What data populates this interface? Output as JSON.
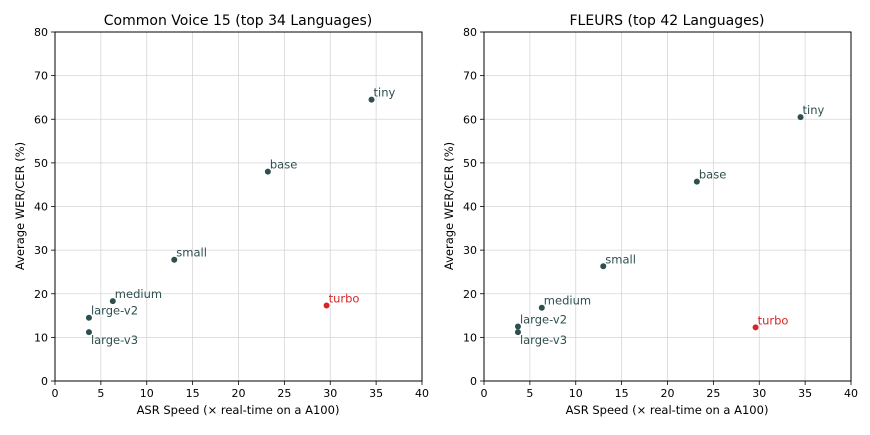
{
  "colors": {
    "default_point": "#2f4f4f",
    "highlight_point": "#d62728"
  },
  "chart_data": [
    {
      "type": "scatter",
      "title": "Common Voice 15 (top 34 Languages)",
      "xlabel": "ASR Speed (× real-time on a A100)",
      "ylabel": "Average WER/CER (%)",
      "xlim": [
        0,
        40
      ],
      "ylim": [
        0,
        80
      ],
      "xticks": [
        "0",
        "5",
        "10",
        "15",
        "20",
        "25",
        "30",
        "35",
        "40"
      ],
      "yticks": [
        "0",
        "10",
        "20",
        "30",
        "40",
        "50",
        "60",
        "70",
        "80"
      ],
      "grid": true,
      "points": [
        {
          "label": "tiny",
          "x": 34.5,
          "y": 64.5,
          "highlight": false,
          "label_pos": "above-right"
        },
        {
          "label": "base",
          "x": 23.2,
          "y": 48.0,
          "highlight": false,
          "label_pos": "above-right"
        },
        {
          "label": "small",
          "x": 13.0,
          "y": 27.8,
          "highlight": false,
          "label_pos": "above-right"
        },
        {
          "label": "medium",
          "x": 6.3,
          "y": 18.3,
          "highlight": false,
          "label_pos": "above-right"
        },
        {
          "label": "large-v2",
          "x": 3.7,
          "y": 14.5,
          "highlight": false,
          "label_pos": "above-right"
        },
        {
          "label": "large-v3",
          "x": 3.7,
          "y": 11.2,
          "highlight": false,
          "label_pos": "below-right"
        },
        {
          "label": "turbo",
          "x": 29.6,
          "y": 17.3,
          "highlight": true,
          "label_pos": "above-right"
        }
      ]
    },
    {
      "type": "scatter",
      "title": "FLEURS (top 42 Languages)",
      "xlabel": "ASR Speed (× real-time on a A100)",
      "ylabel": "Average WER/CER (%)",
      "xlim": [
        0,
        40
      ],
      "ylim": [
        0,
        80
      ],
      "xticks": [
        "0",
        "5",
        "10",
        "15",
        "20",
        "25",
        "30",
        "35",
        "40"
      ],
      "yticks": [
        "0",
        "10",
        "20",
        "30",
        "40",
        "50",
        "60",
        "70",
        "80"
      ],
      "grid": true,
      "points": [
        {
          "label": "tiny",
          "x": 34.5,
          "y": 60.5,
          "highlight": false,
          "label_pos": "above-right"
        },
        {
          "label": "base",
          "x": 23.2,
          "y": 45.7,
          "highlight": false,
          "label_pos": "above-right"
        },
        {
          "label": "small",
          "x": 13.0,
          "y": 26.3,
          "highlight": false,
          "label_pos": "above-right"
        },
        {
          "label": "medium",
          "x": 6.3,
          "y": 16.8,
          "highlight": false,
          "label_pos": "above-right"
        },
        {
          "label": "large-v2",
          "x": 3.7,
          "y": 12.5,
          "highlight": false,
          "label_pos": "above-right"
        },
        {
          "label": "large-v3",
          "x": 3.7,
          "y": 11.2,
          "highlight": false,
          "label_pos": "below-right"
        },
        {
          "label": "turbo",
          "x": 29.6,
          "y": 12.3,
          "highlight": true,
          "label_pos": "above-right"
        }
      ]
    }
  ]
}
